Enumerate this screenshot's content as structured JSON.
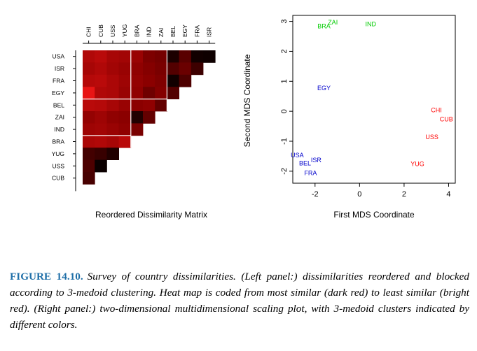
{
  "chart_data": [
    {
      "type": "heatmap",
      "title": "",
      "xlabel": "Reordered Dissimilarity Matrix",
      "ylabel": "",
      "column_labels": [
        "CHI",
        "CUB",
        "USS",
        "YUG",
        "BRA",
        "IND",
        "ZAI",
        "BEL",
        "EGY",
        "FRA",
        "ISR"
      ],
      "row_labels": [
        "USA",
        "ISR",
        "FRA",
        "EGY",
        "BEL",
        "ZAI",
        "IND",
        "BRA",
        "YUG",
        "USS",
        "CUB"
      ],
      "shape": "lower-triangle",
      "color_scale": {
        "low_color": "#000000",
        "mid_color": "#8b0000",
        "high_color": "#ff1a1a",
        "low_meaning": "most similar (dark red)",
        "high_meaning": "least similar (bright red)"
      },
      "clusters": [
        {
          "columns": [
            "CHI",
            "CUB",
            "USS",
            "YUG"
          ]
        },
        {
          "columns": [
            "BRA",
            "IND",
            "ZAI"
          ]
        },
        {
          "columns": [
            "BEL",
            "EGY",
            "FRA",
            "ISR"
          ]
        }
      ],
      "rows": [
        [
          0.66,
          0.7,
          0.62,
          0.6,
          0.56,
          0.45,
          0.42,
          0.1,
          0.32,
          0.06,
          0.05
        ],
        [
          0.62,
          0.66,
          0.6,
          0.56,
          0.52,
          0.48,
          0.44,
          0.3,
          0.38,
          0.22
        ],
        [
          0.68,
          0.7,
          0.64,
          0.58,
          0.54,
          0.5,
          0.46,
          0.06,
          0.28
        ],
        [
          0.9,
          0.66,
          0.64,
          0.56,
          0.52,
          0.4,
          0.48,
          0.3
        ],
        [
          0.7,
          0.68,
          0.62,
          0.56,
          0.5,
          0.52,
          0.36
        ],
        [
          0.54,
          0.58,
          0.52,
          0.5,
          0.12,
          0.36
        ],
        [
          0.58,
          0.6,
          0.56,
          0.52,
          0.44
        ],
        [
          0.64,
          0.66,
          0.62,
          0.7
        ],
        [
          0.24,
          0.2,
          0.12
        ],
        [
          0.28,
          0.04
        ],
        [
          0.26
        ]
      ]
    },
    {
      "type": "scatter",
      "title": "",
      "xlabel": "First MDS Coordinate",
      "ylabel": "Second MDS Coordinate",
      "xlim": [
        -3,
        4.3
      ],
      "ylim": [
        -2.4,
        3.2
      ],
      "x_ticks": [
        -2,
        0,
        2,
        4
      ],
      "y_ticks": [
        -2,
        -1,
        0,
        1,
        2,
        3
      ],
      "grid": false,
      "points": [
        {
          "label": "BRA",
          "x": -1.6,
          "y": 2.85,
          "color": "#00cc00"
        },
        {
          "label": "ZAI",
          "x": -1.2,
          "y": 2.98,
          "color": "#00cc00"
        },
        {
          "label": "IND",
          "x": 0.5,
          "y": 2.92,
          "color": "#00cc00"
        },
        {
          "label": "EGY",
          "x": -1.6,
          "y": 0.78,
          "color": "#0000cc"
        },
        {
          "label": "USA",
          "x": -2.8,
          "y": -1.45,
          "color": "#0000cc"
        },
        {
          "label": "ISR",
          "x": -1.95,
          "y": -1.62,
          "color": "#0000cc"
        },
        {
          "label": "BEL",
          "x": -2.45,
          "y": -1.72,
          "color": "#0000cc"
        },
        {
          "label": "FRA",
          "x": -2.2,
          "y": -2.05,
          "color": "#0000cc"
        },
        {
          "label": "CHI",
          "x": 3.45,
          "y": 0.05,
          "color": "#ff0000"
        },
        {
          "label": "CUB",
          "x": 3.9,
          "y": -0.25,
          "color": "#ff0000"
        },
        {
          "label": "USS",
          "x": 3.25,
          "y": -0.85,
          "color": "#ff0000"
        },
        {
          "label": "YUG",
          "x": 2.6,
          "y": -1.75,
          "color": "#ff0000"
        }
      ]
    }
  ],
  "caption": {
    "label": "FIGURE 14.10.",
    "text": "Survey of country dissimilarities. (Left panel:) dissimilarities reordered and blocked according to 3-medoid clustering. Heat map is coded from most similar (dark red) to least similar (bright red). (Right panel:) two-dimensional multidimensional scaling plot, with 3-medoid clusters indicated by different colors."
  }
}
